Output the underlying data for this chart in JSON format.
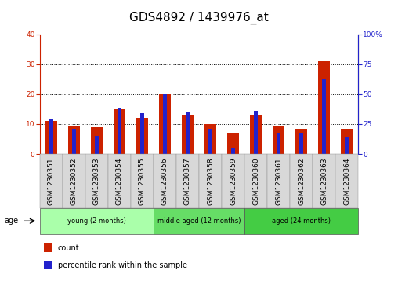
{
  "title": "GDS4892 / 1439976_at",
  "samples": [
    "GSM1230351",
    "GSM1230352",
    "GSM1230353",
    "GSM1230354",
    "GSM1230355",
    "GSM1230356",
    "GSM1230357",
    "GSM1230358",
    "GSM1230359",
    "GSM1230360",
    "GSM1230361",
    "GSM1230362",
    "GSM1230363",
    "GSM1230364"
  ],
  "count_values": [
    11,
    9.5,
    9,
    15,
    12,
    20,
    13,
    10,
    7,
    13,
    9.5,
    8.5,
    31,
    8.5
  ],
  "percentile_values": [
    29,
    21,
    15,
    39,
    34,
    50,
    35,
    21,
    5,
    36,
    18,
    18,
    62,
    14
  ],
  "red_color": "#cc2200",
  "blue_color": "#2222cc",
  "ylim_left": [
    0,
    40
  ],
  "ylim_right": [
    0,
    100
  ],
  "yticks_left": [
    0,
    10,
    20,
    30,
    40
  ],
  "yticks_right": [
    0,
    25,
    50,
    75,
    100
  ],
  "groups": [
    {
      "label": "young (2 months)",
      "start": 0,
      "end": 5,
      "color": "#aaffaa"
    },
    {
      "label": "middle aged (12 months)",
      "start": 5,
      "end": 9,
      "color": "#66dd66"
    },
    {
      "label": "aged (24 months)",
      "start": 9,
      "end": 14,
      "color": "#44cc44"
    }
  ],
  "bar_width": 0.5,
  "blue_bar_width": 0.18,
  "legend_red": "count",
  "legend_blue": "percentile rank within the sample",
  "age_label": "age",
  "title_fontsize": 11,
  "tick_fontsize": 6.5,
  "label_fontsize": 7.5
}
